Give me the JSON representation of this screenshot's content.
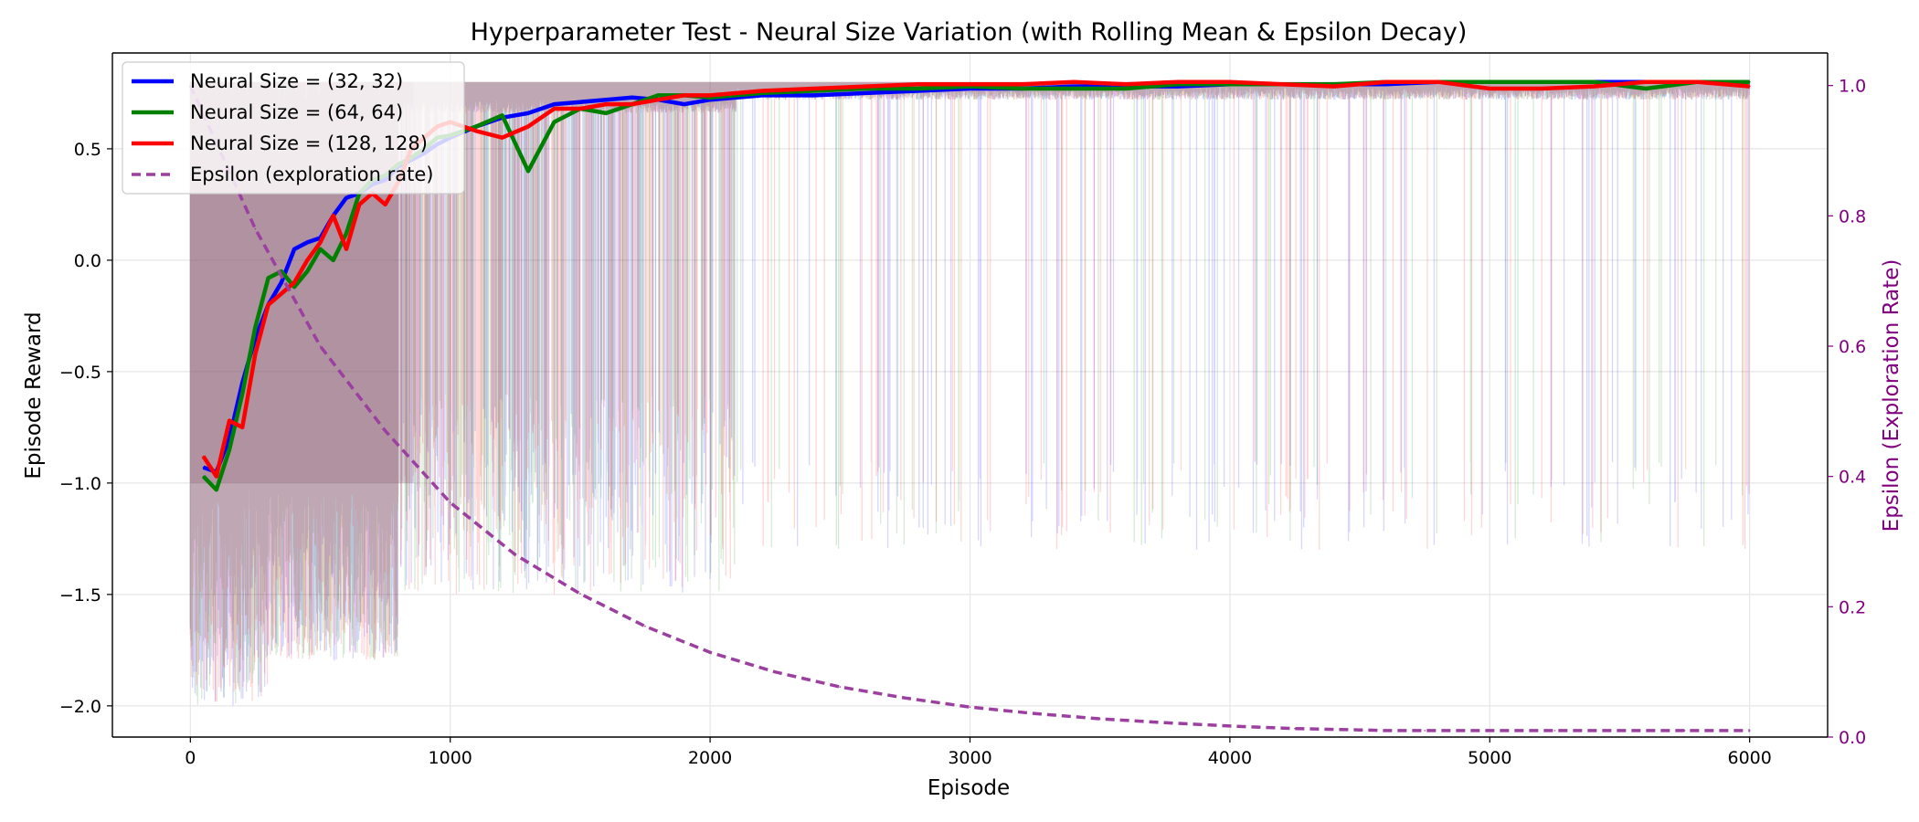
{
  "chart_data": {
    "type": "line",
    "title": "Hyperparameter Test - Neural Size Variation (with Rolling Mean & Epsilon Decay)",
    "xlabel": "Episode",
    "ylabel": "Episode Reward",
    "y2label": "Epsilon (Exploration Rate)",
    "xlim": [
      -300,
      6300
    ],
    "ylim": [
      -2.14,
      0.93
    ],
    "y2lim": [
      0.0,
      1.05
    ],
    "xticks": [
      0,
      1000,
      2000,
      3000,
      4000,
      5000,
      6000
    ],
    "yticks": [
      -2.0,
      -1.5,
      -1.0,
      -0.5,
      0.0,
      0.5
    ],
    "ytick_labels": [
      "−2.0",
      "−1.5",
      "−1.0",
      "−0.5",
      "0.0",
      "0.5"
    ],
    "y2ticks": [
      0.0,
      0.2,
      0.4,
      0.6,
      0.8,
      1.0
    ],
    "y2tick_labels": [
      "0.0",
      "0.2",
      "0.4",
      "0.6",
      "0.8",
      "1.0"
    ],
    "grid": true,
    "legend_position": "top-left",
    "series": [
      {
        "name": "Neural Size = (32, 32)",
        "color": "#0000ff",
        "x": [
          50,
          100,
          150,
          200,
          250,
          300,
          350,
          400,
          450,
          500,
          550,
          600,
          650,
          700,
          750,
          800,
          850,
          900,
          950,
          1000,
          1100,
          1200,
          1300,
          1400,
          1500,
          1600,
          1700,
          1800,
          1900,
          2000,
          2200,
          2400,
          2600,
          2800,
          3000,
          3200,
          3400,
          3600,
          3800,
          4000,
          4200,
          4400,
          4600,
          4800,
          5000,
          5200,
          5400,
          5600,
          5800,
          6000
        ],
        "values": [
          -0.93,
          -0.95,
          -0.8,
          -0.55,
          -0.35,
          -0.2,
          -0.1,
          0.05,
          0.08,
          0.1,
          0.2,
          0.28,
          0.3,
          0.34,
          0.36,
          0.42,
          0.45,
          0.48,
          0.52,
          0.55,
          0.6,
          0.64,
          0.66,
          0.7,
          0.71,
          0.72,
          0.73,
          0.72,
          0.7,
          0.72,
          0.74,
          0.74,
          0.75,
          0.76,
          0.77,
          0.77,
          0.78,
          0.78,
          0.78,
          0.79,
          0.79,
          0.79,
          0.79,
          0.8,
          0.8,
          0.8,
          0.8,
          0.8,
          0.8,
          0.8
        ]
      },
      {
        "name": "Neural Size = (64, 64)",
        "color": "#008000",
        "x": [
          50,
          100,
          150,
          200,
          250,
          300,
          350,
          400,
          450,
          500,
          550,
          600,
          650,
          700,
          750,
          800,
          850,
          900,
          950,
          1000,
          1100,
          1200,
          1300,
          1400,
          1500,
          1600,
          1700,
          1800,
          1900,
          2000,
          2200,
          2400,
          2600,
          2800,
          3000,
          3200,
          3400,
          3600,
          3800,
          4000,
          4200,
          4400,
          4600,
          4800,
          5000,
          5200,
          5400,
          5600,
          5800,
          6000
        ],
        "values": [
          -0.97,
          -1.03,
          -0.85,
          -0.6,
          -0.3,
          -0.08,
          -0.05,
          -0.12,
          -0.05,
          0.05,
          0.0,
          0.12,
          0.3,
          0.36,
          0.38,
          0.43,
          0.46,
          0.5,
          0.55,
          0.56,
          0.6,
          0.65,
          0.4,
          0.62,
          0.68,
          0.66,
          0.7,
          0.74,
          0.74,
          0.73,
          0.75,
          0.76,
          0.77,
          0.77,
          0.78,
          0.77,
          0.77,
          0.77,
          0.79,
          0.79,
          0.79,
          0.79,
          0.8,
          0.8,
          0.8,
          0.8,
          0.8,
          0.77,
          0.8,
          0.8
        ]
      },
      {
        "name": "Neural Size = (128, 128)",
        "color": "#ff0000",
        "x": [
          50,
          100,
          150,
          200,
          250,
          300,
          350,
          400,
          450,
          500,
          550,
          600,
          650,
          700,
          750,
          800,
          850,
          900,
          950,
          1000,
          1100,
          1200,
          1300,
          1400,
          1500,
          1600,
          1700,
          1800,
          1900,
          2000,
          2200,
          2400,
          2600,
          2800,
          3000,
          3200,
          3400,
          3600,
          3800,
          4000,
          4200,
          4400,
          4600,
          4800,
          5000,
          5200,
          5400,
          5600,
          5800,
          6000
        ],
        "values": [
          -0.88,
          -0.97,
          -0.72,
          -0.75,
          -0.42,
          -0.2,
          -0.15,
          -0.1,
          0.0,
          0.08,
          0.2,
          0.05,
          0.25,
          0.3,
          0.25,
          0.35,
          0.5,
          0.55,
          0.6,
          0.62,
          0.58,
          0.55,
          0.6,
          0.68,
          0.68,
          0.7,
          0.7,
          0.72,
          0.74,
          0.74,
          0.76,
          0.77,
          0.78,
          0.79,
          0.79,
          0.79,
          0.8,
          0.79,
          0.8,
          0.8,
          0.79,
          0.78,
          0.8,
          0.8,
          0.77,
          0.77,
          0.78,
          0.8,
          0.8,
          0.78
        ]
      },
      {
        "name": "Epsilon (exploration rate)",
        "color": "#9c40a0",
        "axis": "right",
        "style": "dashed",
        "x": [
          0,
          250,
          500,
          750,
          1000,
          1250,
          1500,
          1750,
          2000,
          2250,
          2500,
          2750,
          3000,
          3250,
          3500,
          3750,
          4000,
          4250,
          4500,
          4600,
          4750,
          5000,
          5250,
          5500,
          5750,
          6000
        ],
        "values": [
          1.0,
          0.78,
          0.6,
          0.47,
          0.36,
          0.28,
          0.22,
          0.17,
          0.13,
          0.1,
          0.077,
          0.06,
          0.046,
          0.036,
          0.028,
          0.022,
          0.017,
          0.013,
          0.011,
          0.01,
          0.01,
          0.01,
          0.01,
          0.01,
          0.01,
          0.01
        ]
      }
    ]
  }
}
